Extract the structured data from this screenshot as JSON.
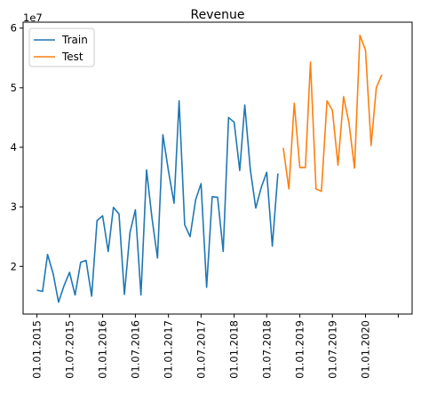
{
  "chart_data": {
    "type": "line",
    "title": "Revenue",
    "xlabel": "",
    "ylabel": "",
    "y_offset_label": "1e7",
    "ylim": [
      12000000,
      61000000
    ],
    "yticks": [
      20000000,
      30000000,
      40000000,
      50000000,
      60000000
    ],
    "ytick_labels": [
      "2",
      "3",
      "4",
      "5",
      "6"
    ],
    "xlim": [
      "2014-10-16",
      "2020-09-16"
    ],
    "xticks": [
      "2015-01-01",
      "2015-07-01",
      "2016-01-01",
      "2016-07-01",
      "2017-01-01",
      "2017-07-01",
      "2018-01-01",
      "2018-07-01",
      "2019-01-01",
      "2019-07-01",
      "2020-01-01",
      "2020-07-01"
    ],
    "xtick_labels": [
      "01.01.2015",
      "01.07.2015",
      "01.01.2016",
      "01.07.2016",
      "01.01.2017",
      "01.07.2017",
      "01.01.2018",
      "01.07.2018",
      "01.01.2019",
      "01.07.2019",
      "01.01.2020",
      ""
    ],
    "legend_position": "upper-left",
    "series": [
      {
        "name": "Train",
        "color": "#1f77b4",
        "points": [
          [
            "2015-01-01",
            16000000
          ],
          [
            "2015-02-01",
            15800000
          ],
          [
            "2015-03-01",
            22000000
          ],
          [
            "2015-04-01",
            18800000
          ],
          [
            "2015-05-01",
            14000000
          ],
          [
            "2015-06-01",
            16800000
          ],
          [
            "2015-07-01",
            19000000
          ],
          [
            "2015-08-01",
            15200000
          ],
          [
            "2015-09-01",
            20700000
          ],
          [
            "2015-10-01",
            21000000
          ],
          [
            "2015-11-01",
            15000000
          ],
          [
            "2015-12-01",
            27700000
          ],
          [
            "2016-01-01",
            28500000
          ],
          [
            "2016-02-01",
            22500000
          ],
          [
            "2016-03-01",
            29900000
          ],
          [
            "2016-04-01",
            28800000
          ],
          [
            "2016-05-01",
            15300000
          ],
          [
            "2016-06-01",
            25700000
          ],
          [
            "2016-07-01",
            29500000
          ],
          [
            "2016-08-01",
            15200000
          ],
          [
            "2016-09-01",
            36200000
          ],
          [
            "2016-10-01",
            28200000
          ],
          [
            "2016-11-01",
            21400000
          ],
          [
            "2016-12-01",
            42100000
          ],
          [
            "2017-01-01",
            36000000
          ],
          [
            "2017-02-01",
            30600000
          ],
          [
            "2017-03-01",
            47800000
          ],
          [
            "2017-04-01",
            27000000
          ],
          [
            "2017-05-01",
            25000000
          ],
          [
            "2017-06-01",
            31200000
          ],
          [
            "2017-07-01",
            33900000
          ],
          [
            "2017-08-01",
            16500000
          ],
          [
            "2017-09-01",
            31700000
          ],
          [
            "2017-10-01",
            31600000
          ],
          [
            "2017-11-01",
            22500000
          ],
          [
            "2017-12-01",
            45000000
          ],
          [
            "2018-01-01",
            44200000
          ],
          [
            "2018-02-01",
            36100000
          ],
          [
            "2018-03-01",
            47100000
          ],
          [
            "2018-04-01",
            36200000
          ],
          [
            "2018-05-01",
            29800000
          ],
          [
            "2018-06-01",
            33300000
          ],
          [
            "2018-07-01",
            35800000
          ],
          [
            "2018-08-01",
            23400000
          ],
          [
            "2018-09-01",
            35600000
          ]
        ]
      },
      {
        "name": "Test",
        "color": "#ff7f0e",
        "points": [
          [
            "2018-10-01",
            39900000
          ],
          [
            "2018-11-01",
            33000000
          ],
          [
            "2018-12-01",
            47400000
          ],
          [
            "2019-01-01",
            36600000
          ],
          [
            "2019-02-01",
            36600000
          ],
          [
            "2019-03-01",
            54300000
          ],
          [
            "2019-04-01",
            33000000
          ],
          [
            "2019-05-01",
            32600000
          ],
          [
            "2019-06-01",
            47800000
          ],
          [
            "2019-07-01",
            46200000
          ],
          [
            "2019-08-01",
            37000000
          ],
          [
            "2019-09-01",
            48500000
          ],
          [
            "2019-10-01",
            44100000
          ],
          [
            "2019-11-01",
            36500000
          ],
          [
            "2019-12-01",
            58800000
          ],
          [
            "2020-01-01",
            56300000
          ],
          [
            "2020-02-01",
            40300000
          ],
          [
            "2020-03-01",
            50000000
          ],
          [
            "2020-04-01",
            52200000
          ]
        ]
      }
    ]
  }
}
